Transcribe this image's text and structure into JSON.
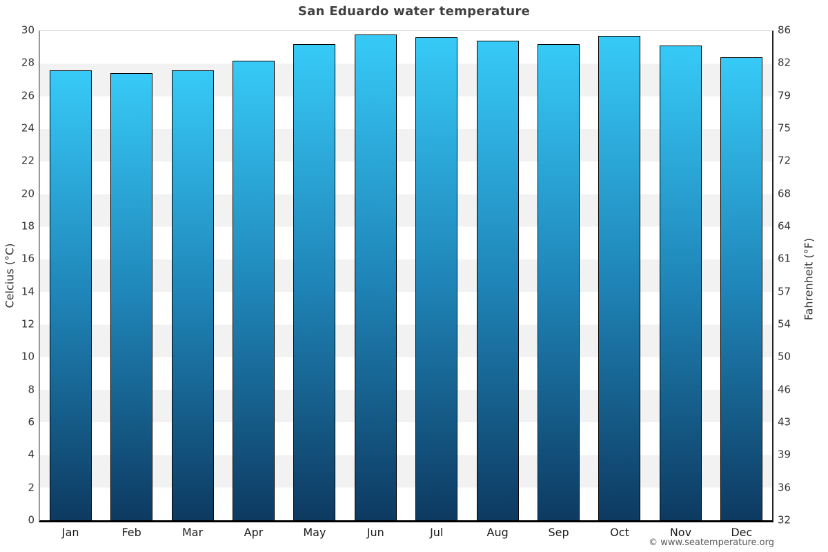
{
  "page": {
    "title": "San Eduardo water temperature",
    "watermark": "© www.seatemperature.org"
  },
  "axes": {
    "left_title": "Celcius (°C)",
    "right_title": "Fahrenheit (°F)"
  },
  "chart_data": {
    "type": "bar",
    "title": "San Eduardo water temperature",
    "categories": [
      "Jan",
      "Feb",
      "Mar",
      "Apr",
      "May",
      "Jun",
      "Jul",
      "Aug",
      "Sep",
      "Oct",
      "Nov",
      "Dec"
    ],
    "values": [
      27.6,
      27.4,
      27.6,
      28.2,
      29.2,
      29.8,
      29.6,
      29.4,
      29.2,
      29.7,
      29.1,
      28.4
    ],
    "series_name": "Water temperature (°C)",
    "xlabel": "",
    "ylabel_left": "Celcius (°C)",
    "ylabel_right": "Fahrenheit (°F)",
    "ylim": [
      0,
      30
    ],
    "tick_step_celsius": 2,
    "grid": "alternating horizontal bands every 2°C (white / light gray), no vertical gridlines",
    "legend_position": "none",
    "axis_ticks": [
      {
        "c": 0,
        "f": 32
      },
      {
        "c": 2,
        "f": 36
      },
      {
        "c": 4,
        "f": 39
      },
      {
        "c": 6,
        "f": 43
      },
      {
        "c": 8,
        "f": 46
      },
      {
        "c": 10,
        "f": 50
      },
      {
        "c": 12,
        "f": 54
      },
      {
        "c": 14,
        "f": 57
      },
      {
        "c": 16,
        "f": 61
      },
      {
        "c": 18,
        "f": 64
      },
      {
        "c": 20,
        "f": 68
      },
      {
        "c": 22,
        "f": 72
      },
      {
        "c": 24,
        "f": 75
      },
      {
        "c": 26,
        "f": 79
      },
      {
        "c": 28,
        "f": 82
      },
      {
        "c": 30,
        "f": 86
      }
    ],
    "colors": {
      "bar_gradient_top": "#37caf7",
      "bar_gradient_mid": "#1f85b8",
      "bar_gradient_bottom": "#0d3a61",
      "bar_border": "#000000",
      "stripe_gray": "#f2f2f2",
      "plot_background": "#ffffff",
      "title_text": "#404040",
      "tick_text": "#333333",
      "month_text": "#1a1a1a",
      "watermark_text": "#595959",
      "left_axis_line": "#999999",
      "right_axis_line": "#222222",
      "bottom_axis_line": "#000000"
    }
  }
}
